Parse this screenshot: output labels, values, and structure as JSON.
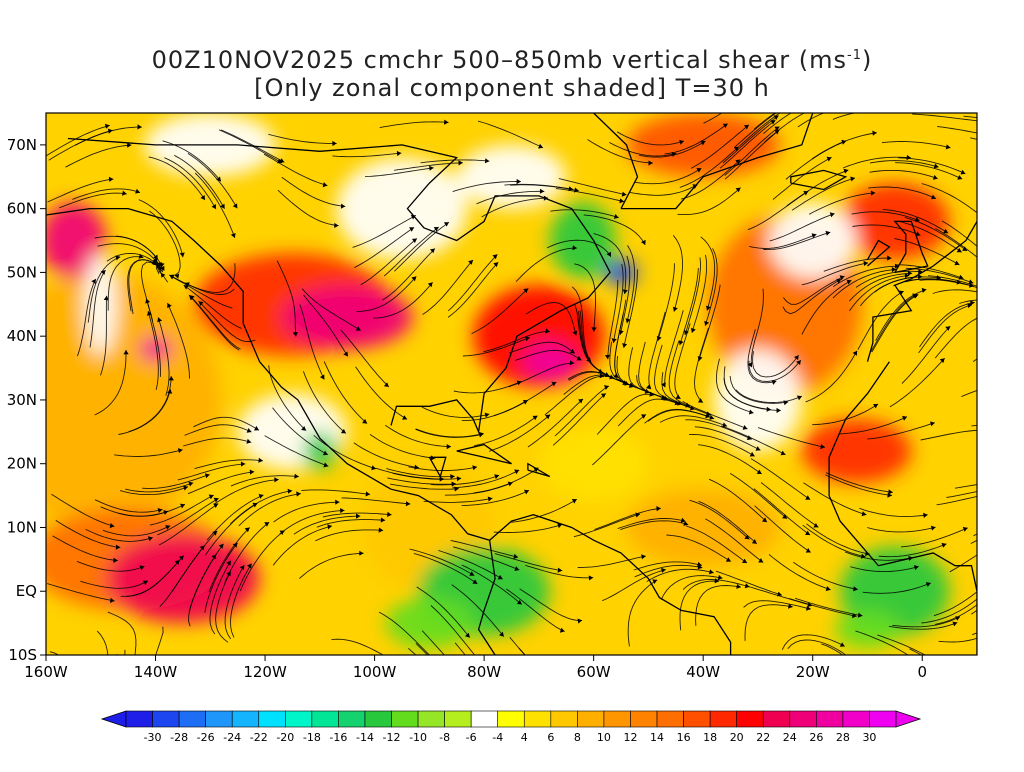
{
  "title": {
    "line1_pre": "00Z10NOV2025 cmchr 500–850mb vertical shear (ms",
    "line1_sup": "-1",
    "line1_post": ")",
    "line2": "[Only zonal component shaded] T=30 h"
  },
  "map": {
    "lon_range": [
      -160,
      10
    ],
    "lat_range": [
      -10,
      75
    ],
    "lon_ticks": [
      "160W",
      "140W",
      "120W",
      "100W",
      "80W",
      "60W",
      "40W",
      "20W",
      "0"
    ],
    "lon_tick_values": [
      -160,
      -140,
      -120,
      -100,
      -80,
      -60,
      -40,
      -20,
      0
    ],
    "lat_ticks": [
      "70N",
      "60N",
      "50N",
      "40N",
      "30N",
      "20N",
      "10N",
      "EQ",
      "10S"
    ],
    "lat_tick_values": [
      70,
      60,
      50,
      40,
      30,
      20,
      10,
      0,
      -10
    ]
  },
  "colorbar": {
    "labels": [
      "-30",
      "-28",
      "-26",
      "-24",
      "-22",
      "-20",
      "-18",
      "-16",
      "-14",
      "-12",
      "-10",
      "-8",
      "-6",
      "-4",
      "4",
      "6",
      "8",
      "10",
      "12",
      "14",
      "16",
      "18",
      "20",
      "22",
      "24",
      "26",
      "28",
      "30"
    ],
    "colors": [
      "#1e1ee8",
      "#1e46f0",
      "#1e6ef5",
      "#1e96fa",
      "#14b4ff",
      "#00e1ff",
      "#00f5c8",
      "#00e696",
      "#14d26e",
      "#28c83c",
      "#64dc1e",
      "#96e628",
      "#b4ee1e",
      "#ffffff",
      "#ffff00",
      "#ffe100",
      "#ffc800",
      "#ffaf00",
      "#ff9600",
      "#ff8200",
      "#ff6e00",
      "#ff5000",
      "#ff2800",
      "#ff0000",
      "#f00050",
      "#f00078",
      "#f000a0",
      "#f000c8",
      "#f000f0"
    ],
    "end_left": "#1e1ee8",
    "end_right": "#f000f0"
  }
}
